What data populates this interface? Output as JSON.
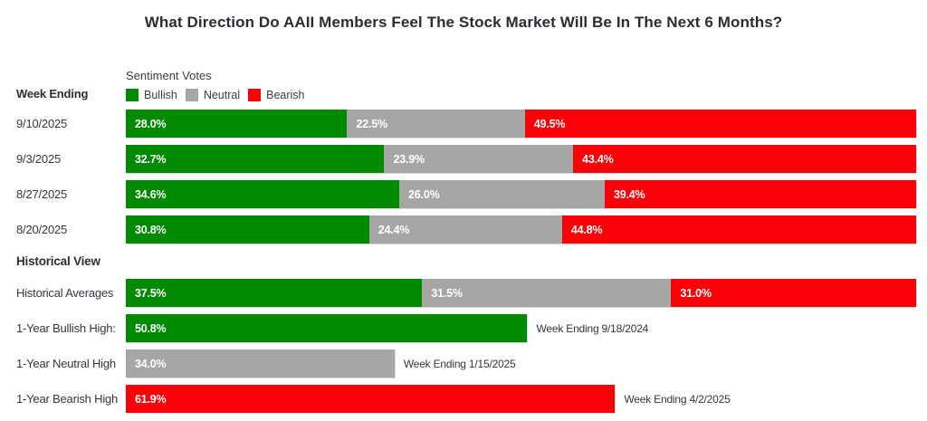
{
  "title": "What Direction Do AAII Members Feel The Stock Market Will Be In The Next 6 Months?",
  "colors": {
    "bullish": "#008a00",
    "neutral": "#a6a6a6",
    "bearish": "#fa0007"
  },
  "left_column": {
    "week_ending": "Week Ending",
    "historical_view": "Historical View"
  },
  "legend": {
    "heading": "Sentiment Votes",
    "items": [
      {
        "label": "Bullish"
      },
      {
        "label": "Neutral"
      },
      {
        "label": "Bearish"
      }
    ]
  },
  "weekly_rows": [
    {
      "date": "9/10/2025",
      "bullish": "28.0",
      "neutral": "22.5",
      "bearish": "49.5"
    },
    {
      "date": "9/3/2025",
      "bullish": "32.7",
      "neutral": "23.9",
      "bearish": "43.4"
    },
    {
      "date": "8/27/2025",
      "bullish": "34.6",
      "neutral": "26.0",
      "bearish": "39.4"
    },
    {
      "date": "8/20/2025",
      "bullish": "30.8",
      "neutral": "24.4",
      "bearish": "44.8"
    }
  ],
  "historical": {
    "averages": {
      "label": "Historical Averages",
      "bullish": "37.5",
      "neutral": "31.5",
      "bearish": "31.0"
    },
    "highs": [
      {
        "label": "1-Year Bullish High:",
        "value": "50.8",
        "color": "#008a00",
        "annotation": "Week Ending 9/18/2024"
      },
      {
        "label": "1-Year Neutral High",
        "value": "34.0",
        "color": "#a6a6a6",
        "annotation": "Week Ending 1/15/2025"
      },
      {
        "label": "1-Year Bearish High",
        "value": "61.9",
        "color": "#fa0007",
        "annotation": "Week Ending 4/2/2025"
      }
    ]
  },
  "chart_data": {
    "type": "bar",
    "orientation": "horizontal",
    "stacked": true,
    "title": "What Direction Do AAII Members Feel The Stock Market Will Be In The Next 6 Months?",
    "legend_title": "Sentiment Votes",
    "legend_position": "top",
    "grid": false,
    "xlim": [
      0,
      100
    ],
    "categories": [
      "9/10/2025",
      "9/3/2025",
      "8/27/2025",
      "8/20/2025",
      "Historical Averages"
    ],
    "series": [
      {
        "name": "Bullish",
        "color": "#008a00",
        "values": [
          28.0,
          32.7,
          34.6,
          30.8,
          37.5
        ]
      },
      {
        "name": "Neutral",
        "color": "#a6a6a6",
        "values": [
          22.5,
          23.9,
          26.0,
          24.4,
          31.5
        ]
      },
      {
        "name": "Bearish",
        "color": "#fa0007",
        "values": [
          49.5,
          43.4,
          39.4,
          44.8,
          31.0
        ]
      }
    ],
    "extremes": [
      {
        "label": "1-Year Bullish High",
        "value": 50.8,
        "annotation": "Week Ending 9/18/2024"
      },
      {
        "label": "1-Year Neutral High",
        "value": 34.0,
        "annotation": "Week Ending 1/15/2025"
      },
      {
        "label": "1-Year Bearish High",
        "value": 61.9,
        "annotation": "Week Ending 4/2/2025"
      }
    ]
  }
}
